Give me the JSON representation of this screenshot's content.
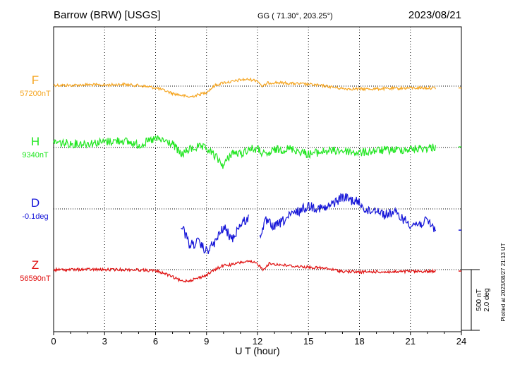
{
  "header": {
    "station": "Barrow (BRW)  [USGS]",
    "coords": "GG ( 71.30°, 203.25°)",
    "date": "2023/08/21"
  },
  "footer": {
    "plotted_at": "Plotted at 2023/08/27 21:13 UT"
  },
  "scale_bar": {
    "nt_label": "500 nT",
    "deg_label": "2.0 deg",
    "nt": 500,
    "deg": 2.0
  },
  "chart_data": {
    "type": "line",
    "xlabel": "U T (hour)",
    "ylabel": "",
    "xlim": [
      0,
      24
    ],
    "xticks": [
      0,
      3,
      6,
      9,
      12,
      15,
      18,
      21,
      24
    ],
    "x_grid": true,
    "data_end_hour": 22.5,
    "series": [
      {
        "name": "F",
        "color": "#f5a623",
        "baseline_label": "57200nT",
        "baseline": 57200,
        "unit": "nT",
        "points": [
          [
            0,
            57208
          ],
          [
            1,
            57206
          ],
          [
            2,
            57212
          ],
          [
            3,
            57208
          ],
          [
            4,
            57215
          ],
          [
            5,
            57205
          ],
          [
            6,
            57186
          ],
          [
            6.5,
            57165
          ],
          [
            7,
            57140
          ],
          [
            7.5,
            57125
          ],
          [
            8,
            57110
          ],
          [
            8.5,
            57128
          ],
          [
            9,
            57150
          ],
          [
            9.5,
            57205
          ],
          [
            10,
            57230
          ],
          [
            10.5,
            57235
          ],
          [
            11,
            57252
          ],
          [
            11.5,
            57255
          ],
          [
            12,
            57245
          ],
          [
            12.3,
            57195
          ],
          [
            12.6,
            57225
          ],
          [
            13,
            57230
          ],
          [
            14,
            57222
          ],
          [
            15,
            57215
          ],
          [
            16,
            57200
          ],
          [
            17,
            57180
          ],
          [
            18,
            57176
          ],
          [
            19,
            57178
          ],
          [
            20,
            57180
          ],
          [
            21,
            57185
          ],
          [
            22,
            57185
          ],
          [
            22.5,
            57185
          ]
        ]
      },
      {
        "name": "H",
        "color": "#22e622",
        "baseline_label": "9340nT",
        "baseline": 9340,
        "unit": "nT",
        "points": [
          [
            0,
            9385
          ],
          [
            1,
            9370
          ],
          [
            2,
            9375
          ],
          [
            3,
            9385
          ],
          [
            4,
            9400
          ],
          [
            5,
            9360
          ],
          [
            6,
            9410
          ],
          [
            6.5,
            9395
          ],
          [
            7,
            9370
          ],
          [
            7.5,
            9280
          ],
          [
            8,
            9325
          ],
          [
            8.5,
            9345
          ],
          [
            9,
            9330
          ],
          [
            9.5,
            9270
          ],
          [
            10,
            9190
          ],
          [
            10.5,
            9300
          ],
          [
            11,
            9285
          ],
          [
            11.5,
            9330
          ],
          [
            12,
            9325
          ],
          [
            12.5,
            9270
          ],
          [
            13,
            9320
          ],
          [
            14,
            9330
          ],
          [
            15,
            9285
          ],
          [
            16,
            9310
          ],
          [
            17,
            9315
          ],
          [
            18,
            9295
          ],
          [
            19,
            9315
          ],
          [
            20,
            9320
          ],
          [
            21,
            9325
          ],
          [
            22,
            9335
          ],
          [
            22.5,
            9345
          ]
        ]
      },
      {
        "name": "D",
        "color": "#1515d8",
        "baseline_label": "-0.1deg",
        "baseline": -0.1,
        "unit": "deg",
        "gaps": [
          [
            0,
            7.5
          ],
          [
            11.5,
            12.1
          ]
        ],
        "points": [
          [
            7.5,
            -0.6
          ],
          [
            7.8,
            -1.0
          ],
          [
            8.0,
            -1.3
          ],
          [
            8.5,
            -1.2
          ],
          [
            9.0,
            -1.5
          ],
          [
            9.5,
            -1.2
          ],
          [
            10.0,
            -0.7
          ],
          [
            10.5,
            -1.1
          ],
          [
            11.0,
            -0.6
          ],
          [
            11.5,
            -0.4
          ],
          [
            12.1,
            -1.0
          ],
          [
            12.5,
            -0.5
          ],
          [
            13.0,
            -0.7
          ],
          [
            14.0,
            -0.3
          ],
          [
            15.0,
            0.0
          ],
          [
            16.0,
            -0.1
          ],
          [
            17.0,
            0.3
          ],
          [
            17.5,
            0.2
          ],
          [
            18.0,
            0.1
          ],
          [
            18.5,
            -0.2
          ],
          [
            19.0,
            -0.1
          ],
          [
            19.5,
            -0.3
          ],
          [
            20.0,
            -0.2
          ],
          [
            20.5,
            -0.4
          ],
          [
            21.0,
            -0.6
          ],
          [
            21.5,
            -0.6
          ],
          [
            22.0,
            -0.5
          ],
          [
            22.5,
            -0.8
          ]
        ]
      },
      {
        "name": "Z",
        "color": "#e01010",
        "baseline_label": "56590nT",
        "baseline": 56590,
        "unit": "nT",
        "points": [
          [
            0,
            56588
          ],
          [
            1,
            56590
          ],
          [
            2,
            56592
          ],
          [
            3,
            56589
          ],
          [
            4,
            56590
          ],
          [
            5,
            56588
          ],
          [
            6,
            56580
          ],
          [
            6.5,
            56560
          ],
          [
            7,
            56530
          ],
          [
            7.5,
            56495
          ],
          [
            8,
            56500
          ],
          [
            8.5,
            56520
          ],
          [
            9,
            56545
          ],
          [
            9.5,
            56590
          ],
          [
            10,
            56625
          ],
          [
            10.5,
            56630
          ],
          [
            11,
            56650
          ],
          [
            11.5,
            56655
          ],
          [
            12,
            56640
          ],
          [
            12.3,
            56590
          ],
          [
            12.7,
            56640
          ],
          [
            13,
            56635
          ],
          [
            14,
            56620
          ],
          [
            15,
            56610
          ],
          [
            16,
            56600
          ],
          [
            17,
            56575
          ],
          [
            18,
            56570
          ],
          [
            19,
            56572
          ],
          [
            20,
            56570
          ],
          [
            21,
            56575
          ],
          [
            22,
            56575
          ],
          [
            22.5,
            56578
          ]
        ]
      }
    ]
  }
}
